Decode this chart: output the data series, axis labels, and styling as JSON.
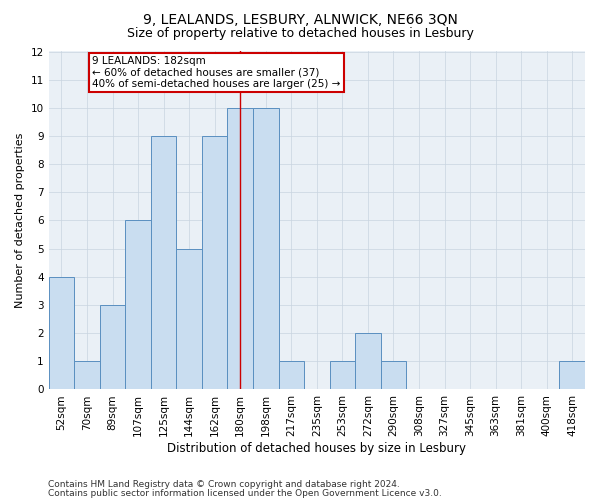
{
  "title1": "9, LEALANDS, LESBURY, ALNWICK, NE66 3QN",
  "title2": "Size of property relative to detached houses in Lesbury",
  "xlabel": "Distribution of detached houses by size in Lesbury",
  "ylabel": "Number of detached properties",
  "categories": [
    "52sqm",
    "70sqm",
    "89sqm",
    "107sqm",
    "125sqm",
    "144sqm",
    "162sqm",
    "180sqm",
    "198sqm",
    "217sqm",
    "235sqm",
    "253sqm",
    "272sqm",
    "290sqm",
    "308sqm",
    "327sqm",
    "345sqm",
    "363sqm",
    "381sqm",
    "400sqm",
    "418sqm"
  ],
  "values": [
    4,
    1,
    3,
    6,
    9,
    5,
    9,
    10,
    10,
    1,
    0,
    1,
    2,
    1,
    0,
    0,
    0,
    0,
    0,
    0,
    1
  ],
  "bar_color": "#c9ddf0",
  "bar_edge_color": "#5a8fc0",
  "vline_x_index": 7,
  "vline_color": "#cc0000",
  "annotation_line1": "9 LEALANDS: 182sqm",
  "annotation_line2": "← 60% of detached houses are smaller (37)",
  "annotation_line3": "40% of semi-detached houses are larger (25) →",
  "annotation_box_color": "white",
  "annotation_box_edge": "#cc0000",
  "ylim": [
    0,
    12
  ],
  "yticks": [
    0,
    1,
    2,
    3,
    4,
    5,
    6,
    7,
    8,
    9,
    10,
    11,
    12
  ],
  "grid_color": "#c8d4e0",
  "background_color": "#eaf0f6",
  "footer1": "Contains HM Land Registry data © Crown copyright and database right 2024.",
  "footer2": "Contains public sector information licensed under the Open Government Licence v3.0.",
  "title1_fontsize": 10,
  "title2_fontsize": 9,
  "xlabel_fontsize": 8.5,
  "ylabel_fontsize": 8,
  "tick_fontsize": 7.5,
  "annotation_fontsize": 7.5,
  "footer_fontsize": 6.5
}
